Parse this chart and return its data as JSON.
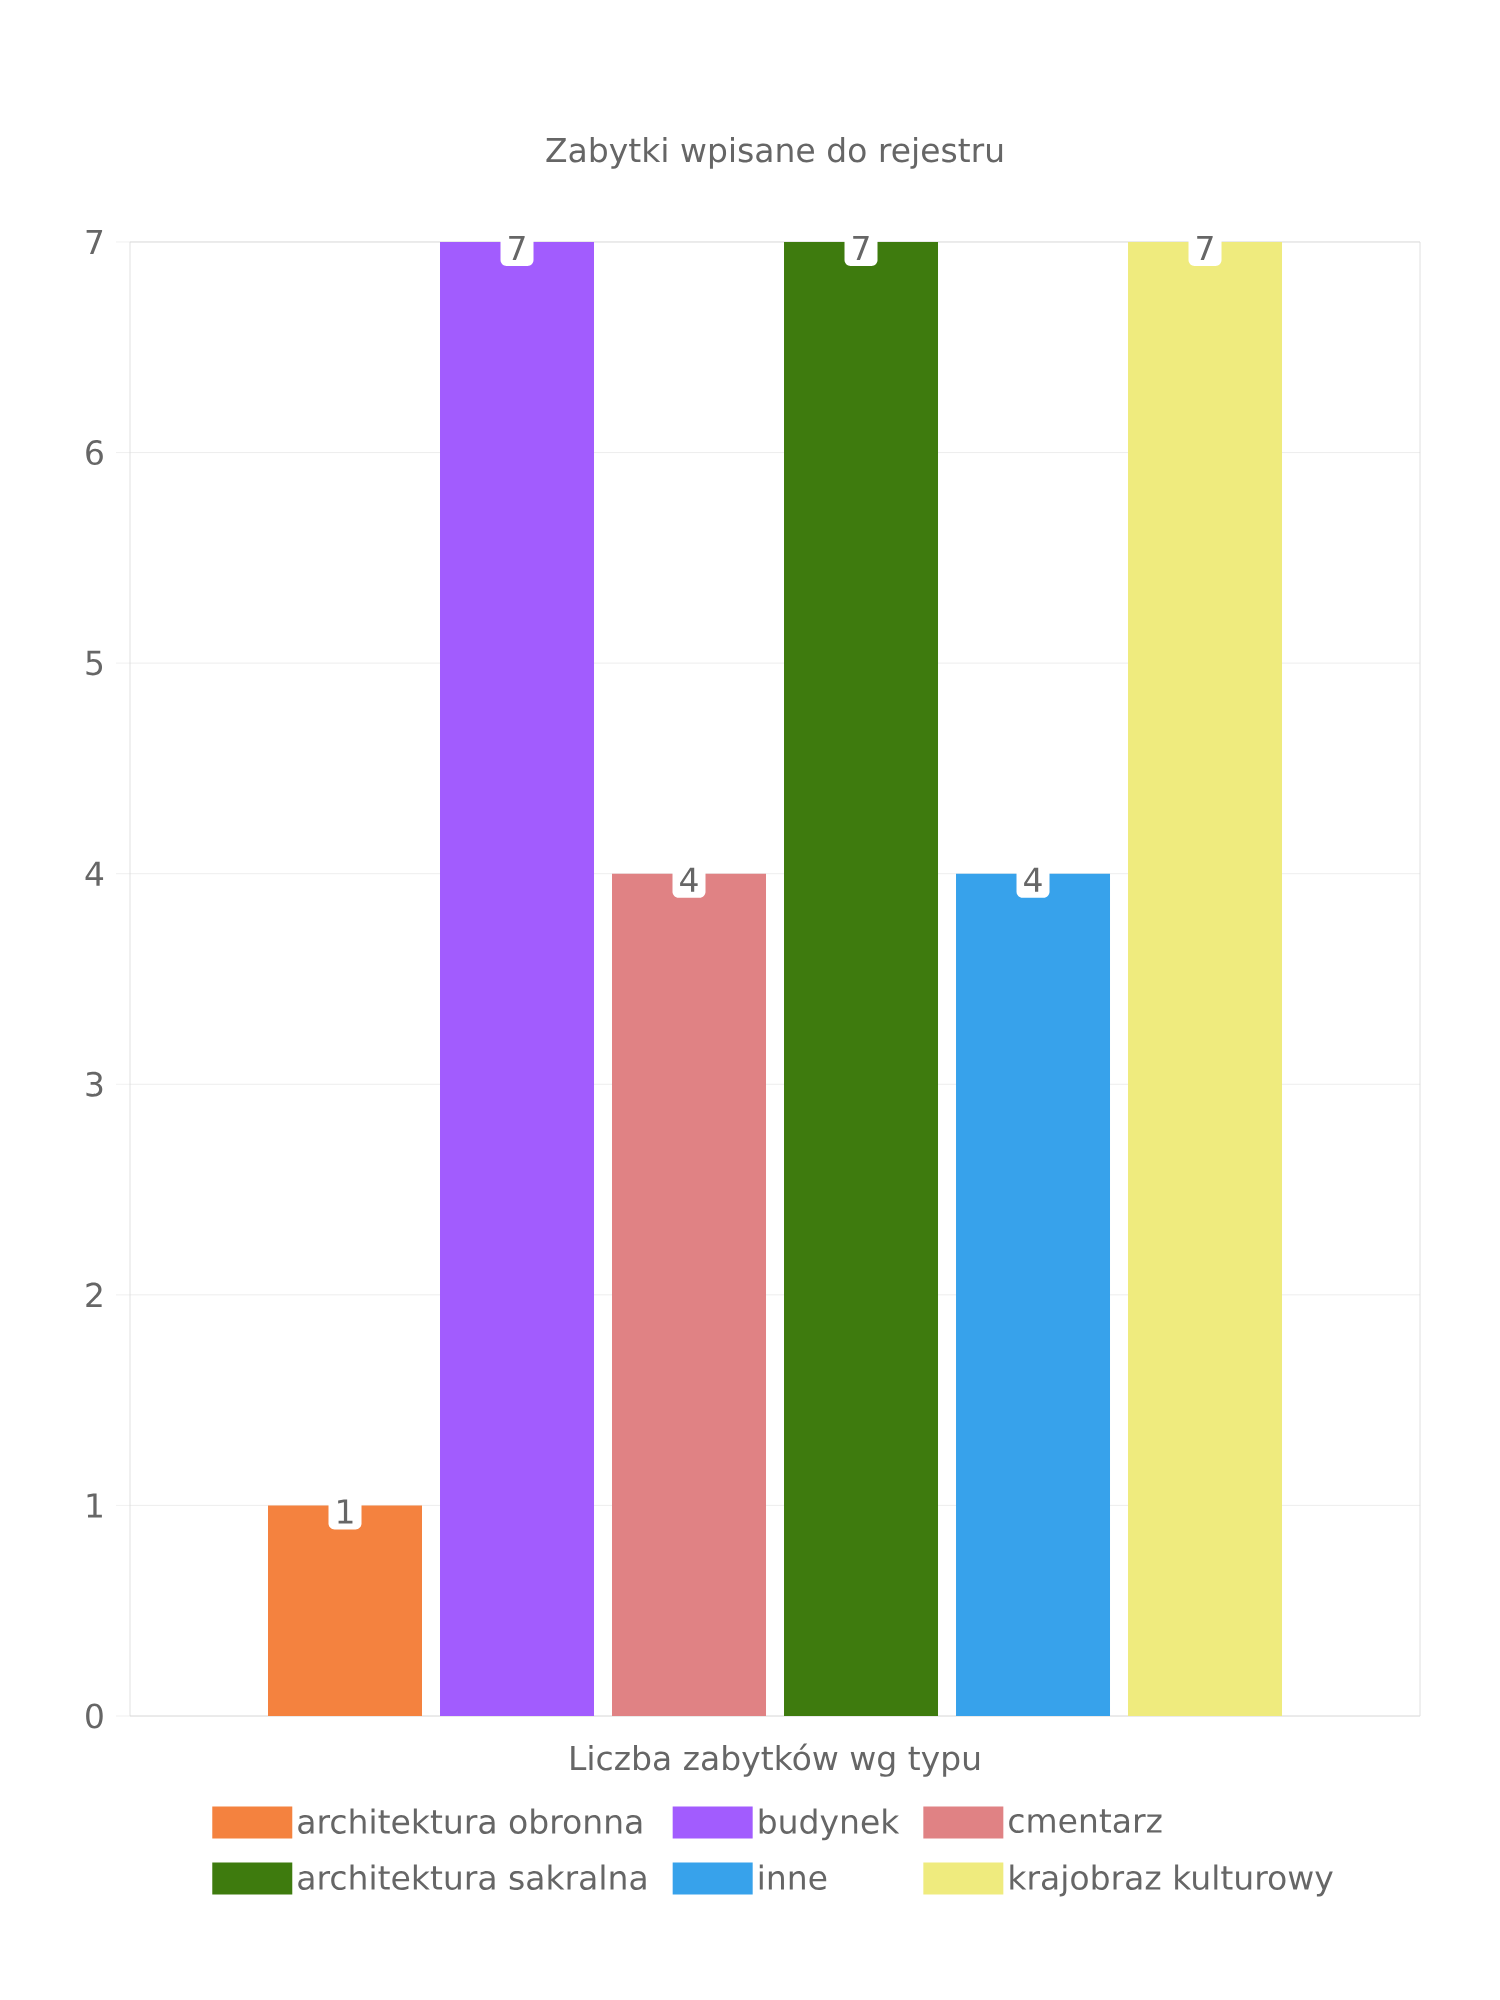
{
  "chart_data": {
    "type": "bar",
    "title": "Zabytki wpisane do rejestru",
    "categories": [
      "Liczba zabytków wg typu"
    ],
    "series": [
      {
        "name": "architektura obronna",
        "color": "#f4823f",
        "values": [
          1
        ]
      },
      {
        "name": "budynek",
        "color": "#a25cfe",
        "values": [
          7
        ]
      },
      {
        "name": "cmentarz",
        "color": "#e08284",
        "values": [
          4
        ]
      },
      {
        "name": "architektura sakralna",
        "color": "#3e7b0e",
        "values": [
          7
        ]
      },
      {
        "name": "inne",
        "color": "#37a2eb",
        "values": [
          4
        ]
      },
      {
        "name": "krajobraz kulturowy",
        "color": "#efeb7e",
        "values": [
          7
        ]
      }
    ],
    "ylim": [
      0,
      7
    ],
    "yticks": [
      0,
      1,
      2,
      3,
      4,
      5,
      6,
      7
    ],
    "grid": "y",
    "legend": "bottom",
    "data_labels": true
  }
}
